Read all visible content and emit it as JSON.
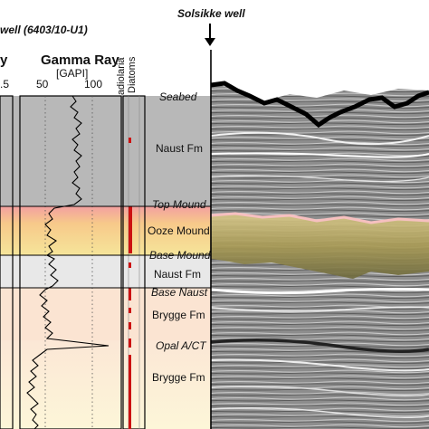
{
  "header": {
    "well_id": "well (6403/10-U1)",
    "solsikke_label": "Solsikke well"
  },
  "log_tracks": {
    "left_track_title_fragment": "y",
    "left_track_scale_fragment": ".5",
    "gamma_ray": {
      "title": "Gamma Ray",
      "unit": "[GAPI]",
      "scale_min_label": "50",
      "scale_max_label": "100"
    },
    "microfossils": {
      "radiolaria": "Radiolaria",
      "diatoms": "Diatoms"
    }
  },
  "units": [
    {
      "label": "Seabed",
      "style": "italic"
    },
    {
      "label": "Naust Fm",
      "style": "normal"
    },
    {
      "label": "Top Mound",
      "style": "italic"
    },
    {
      "label": "Ooze Mound",
      "style": "normal"
    },
    {
      "label": "Base Mound",
      "style": "italic"
    },
    {
      "label": "Naust Fm",
      "style": "normal"
    },
    {
      "label": "Base Naust",
      "style": "italic"
    },
    {
      "label": "Brygge Fm",
      "style": "normal"
    },
    {
      "label": "Opal A/CT",
      "style": "italic"
    },
    {
      "label": "Brygge Fm",
      "style": "normal"
    }
  ],
  "colors": {
    "naust_upper": "#b8b8b8",
    "ooze_mound": "#f6d97a",
    "ooze_mound_top": "#f3a0a0",
    "naust_lower": "#e8e8e8",
    "brygge_upper": "#fbe4d2",
    "brygge_lower": "#fcf3d4",
    "diatom_marker": "#cc1111",
    "seismic_background": "#8a8a8a"
  }
}
